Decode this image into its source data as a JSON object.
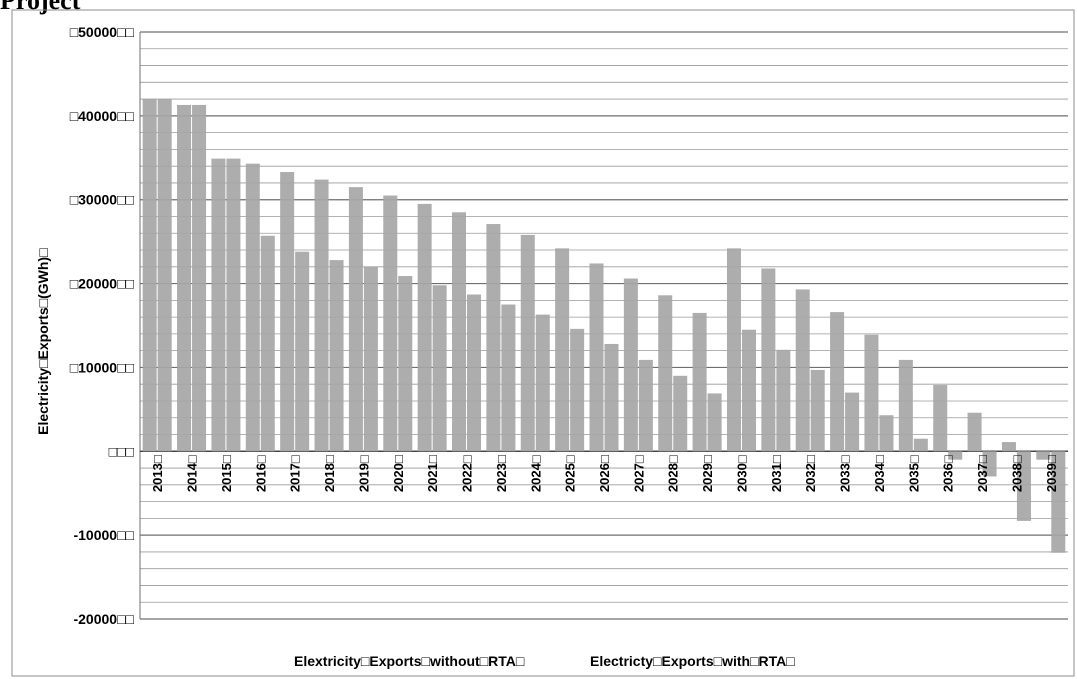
{
  "page": {
    "title_fragment": "Project"
  },
  "chart_data": {
    "type": "bar",
    "title": "",
    "xlabel": "",
    "ylabel": "Electricity□Exports□(GWh)□",
    "ylim": [
      -20000,
      50000
    ],
    "y_ticks": [
      -20000,
      -10000,
      0,
      10000,
      20000,
      30000,
      40000,
      50000
    ],
    "y_tick_labels": [
      "-20000□□",
      "-10000□□",
      "□□□",
      "□10000□□",
      "□20000□□",
      "□30000□□",
      "□40000□□",
      "□50000□□"
    ],
    "grid": true,
    "legend_position": "bottom",
    "categories": [
      "2013",
      "2014",
      "2015",
      "2016",
      "2017",
      "2018",
      "2019",
      "2020",
      "2021",
      "2022",
      "2023",
      "2024",
      "2025",
      "2026",
      "2027",
      "2028",
      "2029",
      "2030",
      "2031",
      "2032",
      "2033",
      "2034",
      "2035",
      "2036",
      "2037",
      "2038",
      "2039"
    ],
    "category_labels": [
      "2013□",
      "2014□",
      "2015□",
      "2016□",
      "2017□",
      "2018□",
      "2019□",
      "2020□",
      "2021□",
      "2022□",
      "2023□",
      "2024□",
      "2025□",
      "2026□",
      "2027□",
      "2028□",
      "2029□",
      "2030□",
      "2031□",
      "2032□",
      "2033□",
      "2034□",
      "2035□",
      "2036□",
      "2037□",
      "2038□",
      "2039□"
    ],
    "series": [
      {
        "name": "Elextricity□Exports□without□RTA□",
        "color": "#a6a6a6",
        "values": [
          42000,
          41300,
          34900,
          34300,
          33300,
          32400,
          31500,
          30500,
          29500,
          28500,
          27100,
          25800,
          24200,
          22400,
          20600,
          18600,
          16500,
          24200,
          21800,
          19300,
          16600,
          13900,
          10900,
          7900,
          4600,
          1100,
          -1000
        ]
      },
      {
        "name": "Electricty□Exports□with□RTA□",
        "color": "#a6a6a6",
        "values": [
          42000,
          41300,
          34900,
          25700,
          23800,
          22800,
          22000,
          20900,
          19800,
          18700,
          17500,
          16300,
          14600,
          12800,
          10900,
          9000,
          6900,
          14500,
          12100,
          9700,
          7000,
          4300,
          1500,
          -1000,
          -3000,
          -8300,
          -12100
        ]
      }
    ]
  }
}
